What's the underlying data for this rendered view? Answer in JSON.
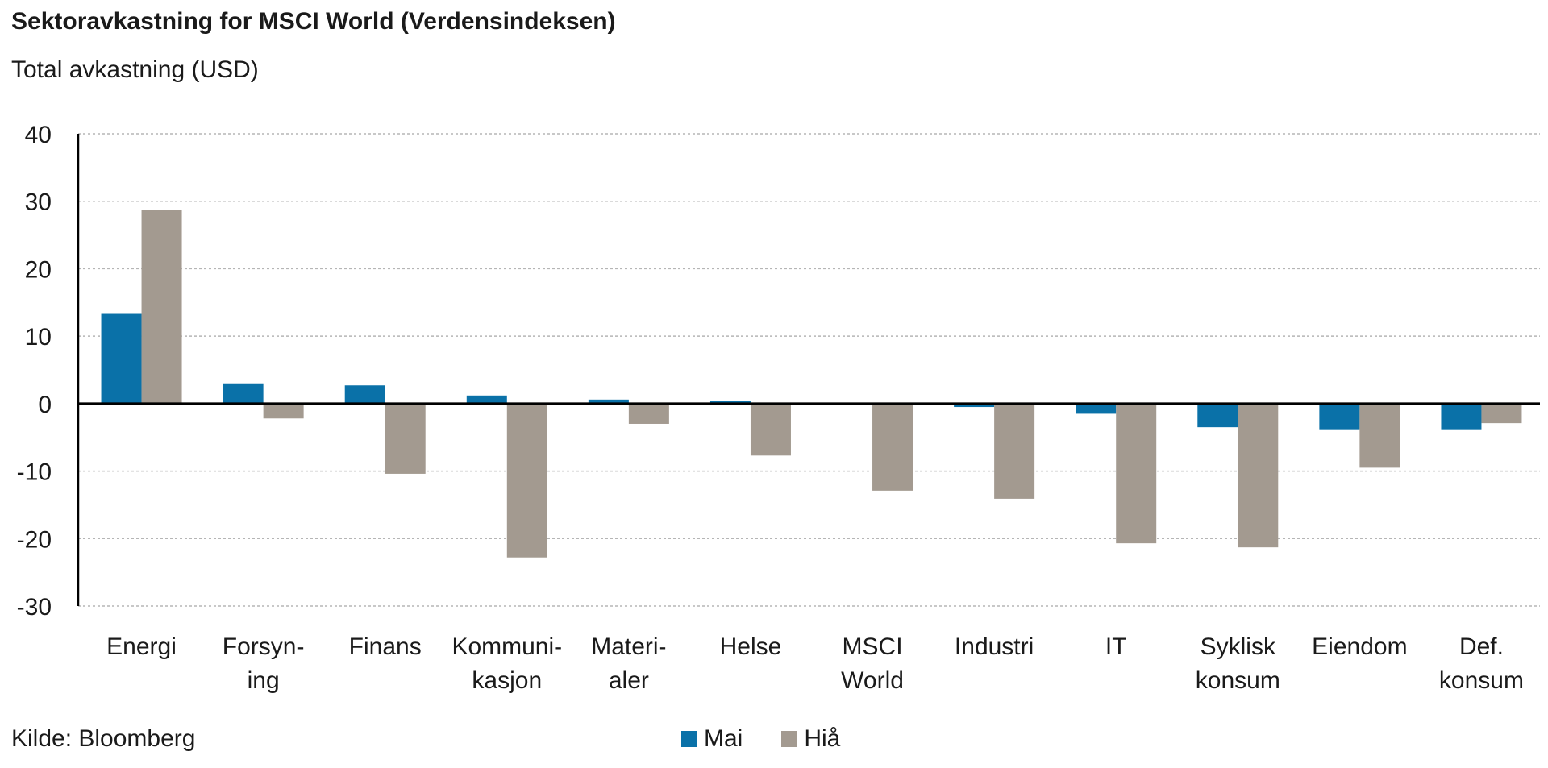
{
  "colors": {
    "mai": "#0a71a8",
    "hia": "#a39a90",
    "grid": "#b5b5b5",
    "axis": "#000000"
  },
  "chart_data": {
    "type": "bar",
    "title": "Sektoravkastning for MSCI World (Verdensindeksen)",
    "subtitle": "Total avkastning (USD)",
    "source": "Kilde: Bloomberg",
    "categories": [
      [
        "Energi"
      ],
      [
        "Forsyn-",
        "ing"
      ],
      [
        "Finans"
      ],
      [
        "Kommuni-",
        "kasjon"
      ],
      [
        "Materi-",
        "aler"
      ],
      [
        "Helse"
      ],
      [
        "MSCI",
        "World"
      ],
      [
        "Industri"
      ],
      [
        "IT"
      ],
      [
        "Syklisk",
        "konsum"
      ],
      [
        "Eiendom"
      ],
      [
        "Def.",
        "konsum"
      ]
    ],
    "series": [
      {
        "name": "Mai",
        "color": "#0a71a8",
        "values": [
          13.3,
          3.0,
          2.7,
          1.2,
          0.6,
          0.4,
          0.0,
          -0.5,
          -1.5,
          -3.5,
          -3.8,
          -3.8
        ]
      },
      {
        "name": "Hiå",
        "color": "#a39a90",
        "values": [
          28.7,
          -2.2,
          -10.4,
          -22.8,
          -3.0,
          -7.7,
          -12.9,
          -14.1,
          -20.7,
          -21.3,
          -9.5,
          -2.9
        ]
      }
    ],
    "ylim": [
      -30,
      40
    ],
    "yticks": [
      40,
      30,
      20,
      10,
      0,
      -10,
      -20,
      -30
    ],
    "grid": true,
    "legend_position": "bottom-center"
  }
}
